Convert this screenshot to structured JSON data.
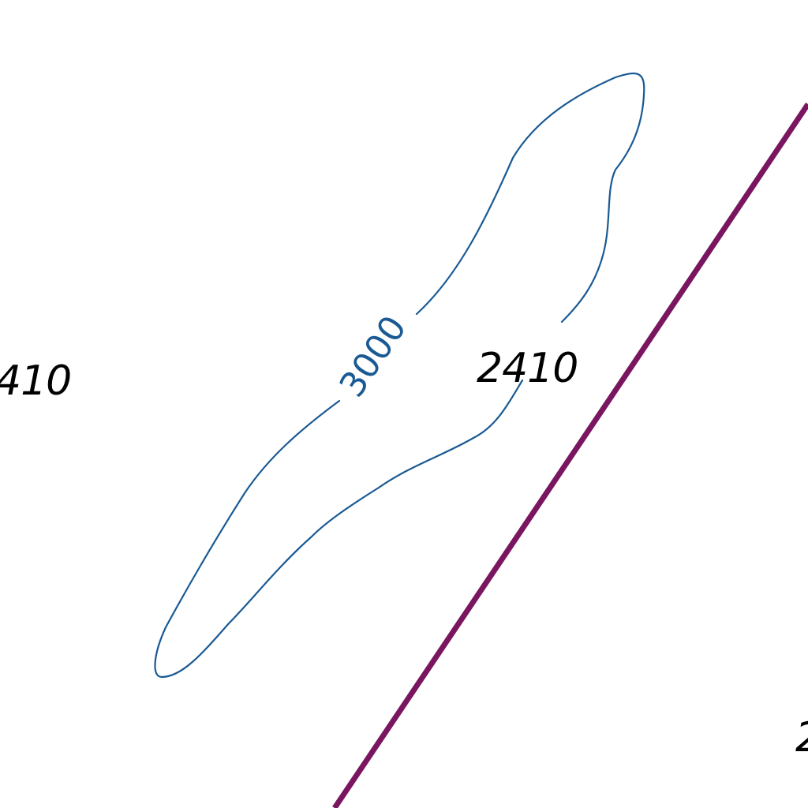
{
  "map": {
    "colors": {
      "background": "#ffffff",
      "contour": "#1a5a94",
      "boundary": "#7a1660",
      "label": "#000000"
    },
    "contour": {
      "label": "3000"
    },
    "labels": {
      "center": "2410",
      "left_partial": "410",
      "right_partial": "2"
    }
  }
}
